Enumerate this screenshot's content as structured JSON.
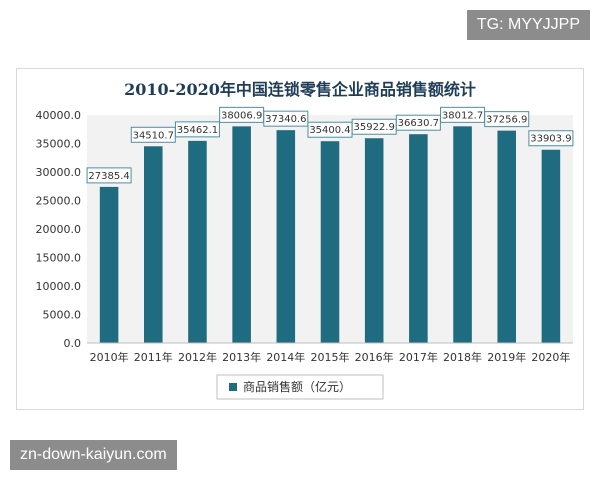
{
  "watermarks": {
    "top_right": "TG: MYYJJPP",
    "bottom_left": "zn-down-kaiyun.com"
  },
  "colors": {
    "bar": "#1f6b80",
    "plot_bg": "#f2f2f2",
    "label_border": "#4a8fa3"
  },
  "chart_data": {
    "type": "bar",
    "title": "2010-2020年中国连锁零售企业商品销售额统计",
    "categories": [
      "2010年",
      "2011年",
      "2012年",
      "2013年",
      "2014年",
      "2015年",
      "2016年",
      "2017年",
      "2018年",
      "2019年",
      "2020年"
    ],
    "series": [
      {
        "name": "商品销售额（亿元）",
        "values": [
          27385.4,
          34510.7,
          35462.1,
          38006.9,
          37340.6,
          35400.4,
          35922.9,
          36630.7,
          38012.7,
          37256.9,
          33903.9
        ],
        "value_labels": [
          "27385.4",
          "34510.7",
          "35462.1",
          "38006.9",
          "37340.6",
          "35400.4",
          "35922.9",
          "36630.7",
          "38012.7",
          "37256.9",
          "33903.9"
        ]
      }
    ],
    "y_ticks": [
      "0.0",
      "5000.0",
      "10000.0",
      "15000.0",
      "20000.0",
      "25000.0",
      "30000.0",
      "35000.0",
      "40000.0"
    ],
    "ylim": [
      0,
      40000
    ],
    "xlabel": "",
    "ylabel": "",
    "grid": false,
    "legend_position": "bottom"
  }
}
